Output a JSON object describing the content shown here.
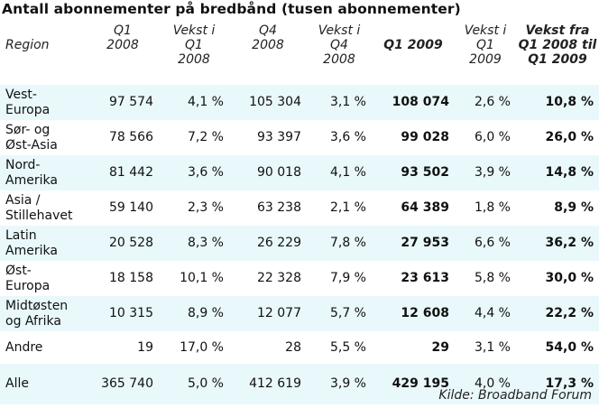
{
  "title": "Antall abonnementer på bredbånd (tusen abonnementer)",
  "columns": [
    "Region",
    "Q1\n2008",
    "Vekst i\nQ1\n2008",
    "Q4\n2008",
    "Vekst i\nQ4\n2008",
    "Q1 2009",
    "Vekst i\nQ1\n2009",
    "Vekst fra\nQ1 2008 til\nQ1 2009"
  ],
  "rows": [
    {
      "region": "Vest-\nEuropa",
      "cells": [
        "97 574",
        "4,1 %",
        "105 304",
        "3,1 %",
        "108 074",
        "2,6 %",
        "10,8 %"
      ]
    },
    {
      "region": "Sør- og\nØst-Asia",
      "cells": [
        "78 566",
        "7,2 %",
        "93 397",
        "3,6 %",
        "99 028",
        "6,0 %",
        "26,0 %"
      ]
    },
    {
      "region": "Nord-\nAmerika",
      "cells": [
        "81 442",
        "3,6 %",
        "90 018",
        "4,1 %",
        "93 502",
        "3,9 %",
        "14,8 %"
      ]
    },
    {
      "region": "Asia /\nStillehavet",
      "cells": [
        "59 140",
        "2,3 %",
        "63 238",
        "2,1 %",
        "64 389",
        "1,8 %",
        "8,9 %"
      ]
    },
    {
      "region": "Latin\nAmerika",
      "cells": [
        "20 528",
        "8,3 %",
        "26 229",
        "7,8 %",
        "27 953",
        "6,6 %",
        "36,2 %"
      ]
    },
    {
      "region": "Øst-\nEuropa",
      "cells": [
        "18 158",
        "10,1 %",
        "22 328",
        "7,9 %",
        "23 613",
        "5,8 %",
        "30,0 %"
      ]
    },
    {
      "region": "Midtøsten\nog Afrika",
      "cells": [
        "10 315",
        "8,9 %",
        "12 077",
        "5,7 %",
        "12 608",
        "4,4 %",
        "22,2 %"
      ]
    },
    {
      "region": "Andre",
      "cells": [
        "19",
        "17,0 %",
        "28",
        "5,5 %",
        "29",
        "3,1 %",
        "54,0 %"
      ]
    },
    {
      "region": "Alle",
      "cells": [
        "365 740",
        "5,0 %",
        "412 619",
        "3,9 %",
        "429 195",
        "4,0 %",
        "17,3 %"
      ]
    }
  ],
  "source": "Kilde: Broadband Forum",
  "colors": {
    "shade": "#e9f8fb",
    "text": "#111111"
  }
}
